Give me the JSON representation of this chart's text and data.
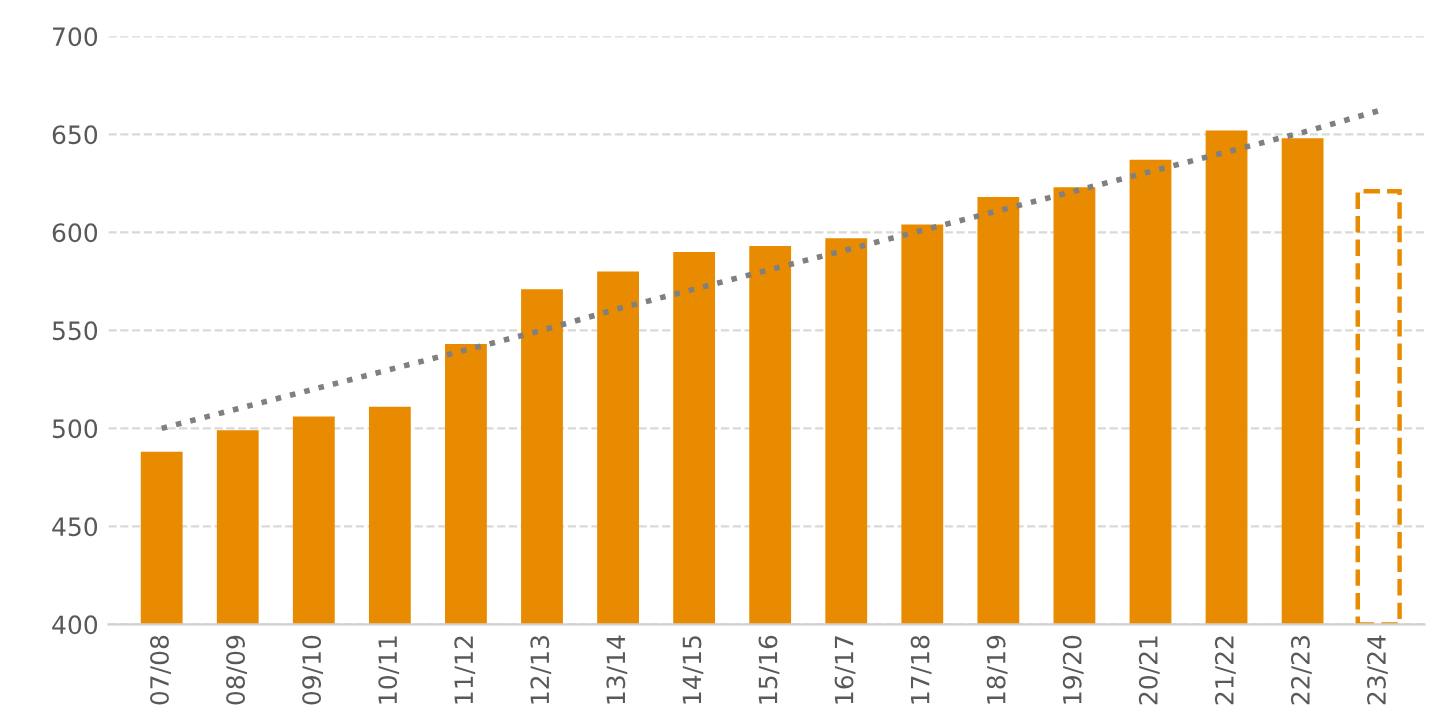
{
  "chart_data": {
    "type": "bar",
    "categories": [
      "07/08",
      "08/09",
      "09/10",
      "10/11",
      "11/12",
      "12/13",
      "13/14",
      "14/15",
      "15/16",
      "16/17",
      "17/18",
      "18/19",
      "19/20",
      "20/21",
      "21/22",
      "22/23",
      "23/24"
    ],
    "series": [
      {
        "color": "#e98b00",
        "values": [
          488,
          499,
          506,
          511,
          543,
          571,
          580,
          590,
          593,
          597,
          604,
          618,
          623,
          637,
          652,
          648,
          null
        ]
      },
      {
        "color": "#e98b00",
        "line_style": "dashed",
        "values": [
          null,
          null,
          null,
          null,
          null,
          null,
          null,
          null,
          null,
          null,
          null,
          null,
          null,
          null,
          null,
          null,
          621
        ]
      },
      {
        "type": "line",
        "color": "#808080",
        "line_style": "dotted",
        "values": [
          500,
          510,
          520,
          530,
          540,
          550,
          561,
          571,
          581,
          591,
          601,
          611,
          621,
          631,
          641,
          651,
          662
        ]
      }
    ],
    "ylim": [
      400,
      700
    ],
    "yticks": [
      400,
      450,
      500,
      550,
      600,
      650,
      700
    ],
    "grid": "y",
    "legend": false
  }
}
